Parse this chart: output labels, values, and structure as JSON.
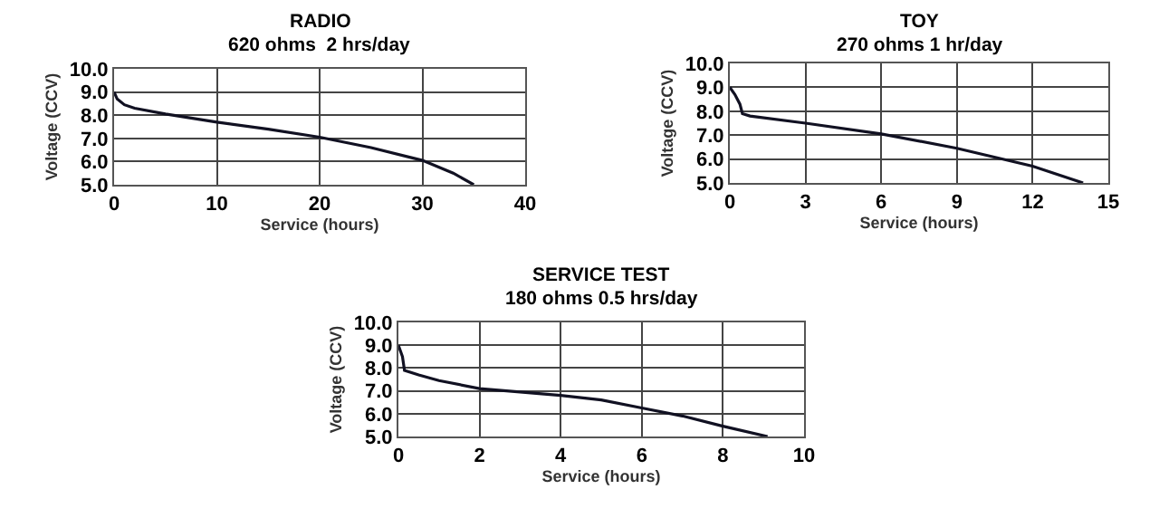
{
  "chart_data": [
    {
      "type": "line",
      "title": "RADIO",
      "subtitle": "620 ohms  2 hrs/day",
      "xlabel": "Service (hours)",
      "ylabel": "Voltage (CCV)",
      "series": [
        {
          "color": "#111122",
          "x": [
            0,
            0.3,
            1,
            2,
            5,
            10,
            15,
            20,
            25,
            30,
            33,
            35
          ],
          "values": [
            9.0,
            8.7,
            8.45,
            8.3,
            8.05,
            7.7,
            7.4,
            7.05,
            6.6,
            6.05,
            5.5,
            5.0
          ]
        }
      ],
      "xlim": [
        0,
        40
      ],
      "xticks": [
        0,
        10,
        20,
        30,
        40
      ],
      "ylim": [
        5,
        10
      ],
      "yticks": [
        {
          "value": 5,
          "label": "5.0"
        },
        {
          "value": 6,
          "label": "6.0"
        },
        {
          "value": 7,
          "label": "7.0"
        },
        {
          "value": 8,
          "label": "8.0"
        },
        {
          "value": 9,
          "label": "9.0"
        },
        {
          "value": 10,
          "label": "10.0"
        }
      ],
      "grid": true,
      "marker": "none",
      "line_style": "solid"
    },
    {
      "type": "line",
      "title": "TOY",
      "subtitle": "270 ohms 1 hr/day",
      "xlabel": "Service (hours)",
      "ylabel": "Voltage (CCV)",
      "series": [
        {
          "color": "#111122",
          "x": [
            0,
            0.2,
            0.4,
            0.5,
            0.8,
            3,
            6,
            9,
            12,
            14
          ],
          "values": [
            9.0,
            8.7,
            8.3,
            7.9,
            7.8,
            7.5,
            7.05,
            6.45,
            5.7,
            5.0
          ]
        }
      ],
      "xlim": [
        0,
        15
      ],
      "xticks": [
        0,
        3,
        6,
        9,
        12,
        15
      ],
      "ylim": [
        5,
        10
      ],
      "yticks": [
        {
          "value": 5,
          "label": "5.0"
        },
        {
          "value": 6,
          "label": "6.0"
        },
        {
          "value": 7,
          "label": "7.0"
        },
        {
          "value": 8,
          "label": "8.0"
        },
        {
          "value": 9,
          "label": "9.0"
        },
        {
          "value": 10,
          "label": "10.0"
        }
      ],
      "grid": true,
      "marker": "none",
      "line_style": "solid"
    },
    {
      "type": "line",
      "title": "SERVICE TEST",
      "subtitle": "180 ohms 0.5 hrs/day",
      "xlabel": "Service (hours)",
      "ylabel": "Voltage (CCV)",
      "series": [
        {
          "color": "#111122",
          "x": [
            0,
            0.1,
            0.15,
            0.5,
            1,
            2,
            4,
            5,
            6,
            7,
            8,
            9.1
          ],
          "values": [
            9.0,
            8.5,
            7.9,
            7.7,
            7.45,
            7.1,
            6.8,
            6.6,
            6.25,
            5.9,
            5.45,
            5.0
          ]
        }
      ],
      "xlim": [
        0,
        10
      ],
      "xticks": [
        0,
        2,
        4,
        6,
        8,
        10
      ],
      "ylim": [
        5,
        10
      ],
      "yticks": [
        {
          "value": 5,
          "label": "5.0"
        },
        {
          "value": 6,
          "label": "6.0"
        },
        {
          "value": 7,
          "label": "7.0"
        },
        {
          "value": 8,
          "label": "8.0"
        },
        {
          "value": 9,
          "label": "9.0"
        },
        {
          "value": 10,
          "label": "10.0"
        }
      ],
      "grid": true,
      "marker": "none",
      "line_style": "solid"
    }
  ]
}
